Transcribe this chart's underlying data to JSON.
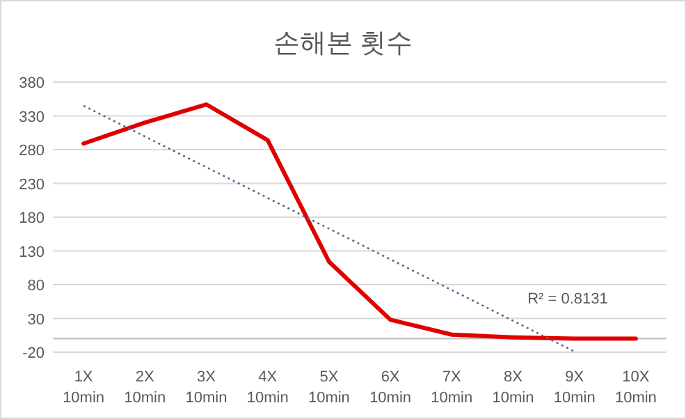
{
  "chart_data": {
    "type": "line",
    "title": "손해본 횟수",
    "categories": [
      "1X\n10min",
      "2X\n10min",
      "3X\n10min",
      "4X\n10min",
      "5X\n10min",
      "6X\n10min",
      "7X\n10min",
      "8X\n10min",
      "9X\n10min",
      "10X\n10min"
    ],
    "series": [
      {
        "color": "#e00000",
        "values": [
          289,
          320,
          347,
          294,
          114,
          28,
          6,
          2,
          0,
          0
        ]
      },
      {
        "type": "line",
        "line_style": "dotted",
        "color": "#4f6a8a",
        "x": [
          "1X\n10min",
          "9X\n10min"
        ],
        "values": [
          345,
          -19
        ]
      }
    ],
    "ylim": [
      -20,
      380
    ],
    "yticks": [
      -20,
      30,
      80,
      130,
      180,
      230,
      280,
      330,
      380
    ],
    "grid": "y",
    "annotations": [
      "R² = 0.8131"
    ]
  }
}
